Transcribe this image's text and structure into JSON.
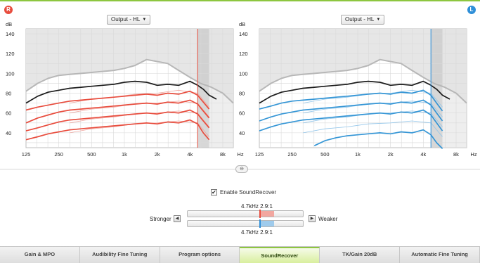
{
  "ears": {
    "left": "R",
    "right": "L"
  },
  "panels": [
    {
      "name": "right-ear",
      "dropdown_label": "Output - HL",
      "accent": "#e84c3d",
      "curve_color": "#e84c3d",
      "light_color": "#f0a7a0",
      "marker_hz": 4700
    },
    {
      "name": "left-ear",
      "dropdown_label": "Output - HL",
      "accent": "#2f8fd8",
      "curve_color": "#3596d6",
      "light_color": "#93c6ea",
      "marker_hz": 4700
    }
  ],
  "chart_data": [
    {
      "type": "line",
      "ylabel": "dB",
      "y_ticks": [
        140,
        120,
        100,
        80,
        60,
        40
      ],
      "ylim": [
        25,
        145
      ],
      "x_ticks": [
        "125",
        "250",
        "500",
        "1k",
        "2k",
        "4k",
        "8k"
      ],
      "x_ticks_hz": [
        125,
        250,
        500,
        1000,
        2000,
        4000,
        8000
      ],
      "x_unit": "Hz",
      "xlim_hz": [
        125,
        10000
      ],
      "uncomfortable_level": {
        "hz": [
          125,
          160,
          200,
          250,
          315,
          400,
          500,
          630,
          800,
          1000,
          1250,
          1600,
          2000,
          2500,
          3150,
          4000,
          5000,
          6300,
          8000,
          10000
        ],
        "db": [
          82,
          90,
          95,
          98,
          99,
          100,
          101,
          102,
          103,
          105,
          108,
          114,
          112,
          110,
          103,
          96,
          90,
          86,
          80,
          70
        ]
      },
      "mpo": {
        "hz": [
          125,
          160,
          200,
          250,
          315,
          400,
          500,
          630,
          800,
          1000,
          1250,
          1600,
          2000,
          2500,
          3150,
          4000,
          4700,
          5300,
          6000,
          7000
        ],
        "db": [
          70,
          77,
          81,
          83,
          85,
          86,
          87,
          88,
          89,
          91,
          92,
          91,
          88,
          89,
          88,
          92,
          88,
          84,
          78,
          74
        ]
      },
      "curves": [
        {
          "hz": [
            125,
            160,
            200,
            250,
            315,
            400,
            500,
            630,
            800,
            1000,
            1250,
            1600,
            2000,
            2500,
            3150,
            4000,
            4700,
            5300,
            6000
          ],
          "db": [
            63,
            66,
            68,
            70,
            72,
            73,
            74,
            75,
            76,
            77,
            78,
            79,
            78,
            80,
            79,
            82,
            78,
            71,
            64
          ]
        },
        {
          "hz": [
            125,
            160,
            200,
            250,
            315,
            400,
            500,
            630,
            800,
            1000,
            1250,
            1600,
            2000,
            2500,
            3150,
            4000,
            4700,
            5300,
            6000
          ],
          "db": [
            50,
            55,
            58,
            61,
            63,
            64,
            65,
            66,
            67,
            68,
            69,
            70,
            69,
            71,
            70,
            73,
            69,
            62,
            55
          ]
        },
        {
          "hz": [
            125,
            160,
            200,
            250,
            315,
            400,
            500,
            630,
            800,
            1000,
            1250,
            1600,
            2000,
            2500,
            3150,
            4000,
            4700,
            5300,
            6000
          ],
          "db": [
            42,
            45,
            48,
            51,
            53,
            54,
            55,
            56,
            57,
            58,
            59,
            60,
            59,
            61,
            60,
            63,
            59,
            52,
            45
          ]
        },
        {
          "hz": [
            125,
            160,
            200,
            250,
            315,
            400,
            500,
            630,
            800,
            1000,
            1250,
            1600,
            2000,
            2500,
            3150,
            4000,
            4700,
            5300,
            6000
          ],
          "db": [
            33,
            36,
            39,
            41,
            43,
            44,
            45,
            46,
            47,
            48,
            49,
            50,
            49,
            51,
            50,
            53,
            49,
            40,
            33
          ]
        }
      ],
      "thin_curves": [
        {
          "hz": [
            315,
            500,
            800,
            1250,
            2000,
            3150,
            4700,
            6000
          ],
          "db": [
            70,
            74,
            76,
            79,
            80,
            83,
            80,
            66
          ]
        },
        {
          "hz": [
            315,
            500,
            800,
            1250,
            2000,
            3150,
            4700,
            6000
          ],
          "db": [
            60,
            64,
            66,
            69,
            70,
            72,
            70,
            56
          ]
        },
        {
          "hz": [
            315,
            500,
            800,
            1250,
            2000,
            3150,
            4700,
            6000
          ],
          "db": [
            50,
            54,
            56,
            59,
            60,
            62,
            60,
            46
          ]
        },
        {
          "hz": [
            315,
            500,
            800,
            1250,
            2000,
            3150,
            4700,
            6000
          ],
          "db": [
            40,
            44,
            46,
            49,
            50,
            52,
            50,
            36
          ]
        }
      ]
    },
    {
      "type": "line",
      "ylabel": "dB",
      "y_ticks": [
        140,
        120,
        100,
        80,
        60,
        40
      ],
      "ylim": [
        25,
        145
      ],
      "x_ticks": [
        "125",
        "250",
        "500",
        "1k",
        "2k",
        "4k",
        "8k"
      ],
      "x_ticks_hz": [
        125,
        250,
        500,
        1000,
        2000,
        4000,
        8000
      ],
      "x_unit": "Hz",
      "xlim_hz": [
        125,
        10000
      ],
      "uncomfortable_level": {
        "hz": [
          125,
          160,
          200,
          250,
          315,
          400,
          500,
          630,
          800,
          1000,
          1250,
          1600,
          2000,
          2500,
          3150,
          4000,
          5000,
          6300,
          8000,
          10000
        ],
        "db": [
          82,
          90,
          95,
          98,
          99,
          100,
          101,
          102,
          103,
          105,
          108,
          114,
          112,
          110,
          103,
          96,
          90,
          86,
          80,
          70
        ]
      },
      "mpo": {
        "hz": [
          125,
          160,
          200,
          250,
          315,
          400,
          500,
          630,
          800,
          1000,
          1250,
          1600,
          2000,
          2500,
          3150,
          4000,
          4700,
          5300,
          6000,
          7000
        ],
        "db": [
          70,
          77,
          81,
          83,
          85,
          86,
          87,
          88,
          89,
          91,
          92,
          91,
          88,
          89,
          88,
          92,
          88,
          84,
          78,
          74
        ]
      },
      "curves": [
        {
          "hz": [
            125,
            160,
            200,
            250,
            315,
            400,
            500,
            630,
            800,
            1000,
            1250,
            1600,
            2000,
            2500,
            3150,
            4000,
            4700,
            5300,
            6000
          ],
          "db": [
            64,
            67,
            70,
            72,
            73,
            74,
            75,
            76,
            77,
            78,
            79,
            80,
            79,
            81,
            80,
            83,
            78,
            70,
            62
          ]
        },
        {
          "hz": [
            125,
            160,
            200,
            250,
            315,
            400,
            500,
            630,
            800,
            1000,
            1250,
            1600,
            2000,
            2500,
            3150,
            4000,
            4700,
            5300,
            6000
          ],
          "db": [
            52,
            56,
            59,
            61,
            63,
            64,
            65,
            66,
            67,
            68,
            69,
            70,
            69,
            71,
            70,
            73,
            68,
            60,
            52
          ]
        },
        {
          "hz": [
            125,
            160,
            200,
            250,
            315,
            400,
            500,
            630,
            800,
            1000,
            1250,
            1600,
            2000,
            2500,
            3150,
            4000,
            4700,
            5300,
            6000
          ],
          "db": [
            42,
            46,
            49,
            51,
            53,
            54,
            55,
            56,
            57,
            58,
            59,
            60,
            59,
            61,
            60,
            63,
            58,
            50,
            42
          ]
        },
        {
          "hz": [
            400,
            500,
            630,
            800,
            1000,
            1250,
            1600,
            2000,
            2500,
            3150,
            4000,
            4700,
            5300,
            6000
          ],
          "db": [
            27,
            32,
            35,
            37,
            38,
            39,
            40,
            39,
            41,
            40,
            43,
            38,
            30,
            24
          ]
        }
      ],
      "thin_curves": [
        {
          "hz": [
            315,
            500,
            800,
            1250,
            2000,
            3150,
            4700,
            6000
          ],
          "db": [
            70,
            74,
            76,
            79,
            80,
            83,
            80,
            66
          ]
        },
        {
          "hz": [
            315,
            500,
            800,
            1250,
            2000,
            3150,
            4700,
            6000
          ],
          "db": [
            60,
            64,
            66,
            69,
            70,
            72,
            70,
            56
          ]
        },
        {
          "hz": [
            315,
            500,
            800,
            1250,
            2000,
            3150,
            4700,
            6000
          ],
          "db": [
            50,
            54,
            56,
            59,
            60,
            62,
            60,
            46
          ]
        },
        {
          "hz": [
            315,
            500,
            800,
            1250,
            2000,
            3150,
            4700,
            6000
          ],
          "db": [
            40,
            44,
            46,
            49,
            50,
            52,
            50,
            36
          ]
        }
      ]
    }
  ],
  "soundrecover": {
    "enable_label": "Enable SoundRecover",
    "enabled": true,
    "stronger_label": "Stronger",
    "weaker_label": "Weaker",
    "right": {
      "value_label": "4.7kHz  2.9:1",
      "position": 0.63,
      "color": "#e84c3d",
      "fill_color": "#f2a7a0"
    },
    "left": {
      "value_label": "4.7kHz  2.9:1",
      "position": 0.63,
      "color": "#2f8fd8",
      "fill_color": "#9fcbec"
    }
  },
  "tabs": [
    {
      "label": "Gain & MPO",
      "active": false
    },
    {
      "label": "Audibility Fine Tuning",
      "active": false
    },
    {
      "label": "Program options",
      "active": false
    },
    {
      "label": "SoundRecover",
      "active": true
    },
    {
      "label": "TK/Gain 20dB",
      "active": false
    },
    {
      "label": "Automatic Fine Tuning",
      "active": false
    }
  ]
}
